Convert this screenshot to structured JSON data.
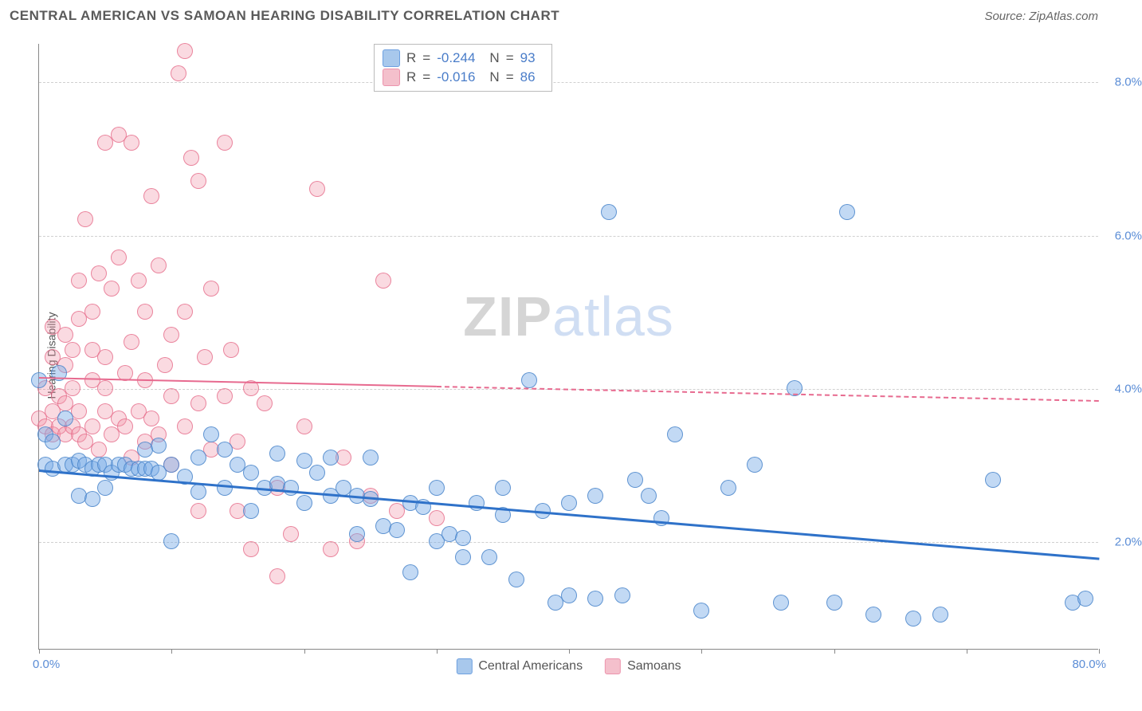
{
  "header": {
    "title": "CENTRAL AMERICAN VS SAMOAN HEARING DISABILITY CORRELATION CHART",
    "source": "Source: ZipAtlas.com"
  },
  "watermark": {
    "part1": "ZIP",
    "part2": "atlas"
  },
  "axes": {
    "ylabel": "Hearing Disability",
    "ymin": 0.6,
    "ymax": 8.5,
    "yticks": [
      2.0,
      4.0,
      6.0,
      8.0
    ],
    "ytick_labels": [
      "2.0%",
      "4.0%",
      "6.0%",
      "8.0%"
    ],
    "xmin": 0,
    "xmax": 80,
    "xtick_labels": [
      "0.0%",
      "80.0%"
    ],
    "xtick_marks": [
      0,
      10,
      20,
      30,
      40,
      50,
      60,
      70,
      80
    ],
    "grid_color": "#d0d0d0",
    "axis_color": "#888888"
  },
  "legend_top": {
    "rows": [
      {
        "color_fill": "#a8c8ec",
        "color_border": "#6da0e0",
        "R": "-0.244",
        "N": "93"
      },
      {
        "color_fill": "#f4c0cc",
        "color_border": "#ec94ad",
        "R": "-0.016",
        "N": "86"
      }
    ],
    "labels": {
      "R": "R",
      "eq": "=",
      "N": "N"
    }
  },
  "legend_bottom": {
    "items": [
      {
        "label": "Central Americans",
        "color_fill": "#a8c8ec",
        "color_border": "#6da0e0"
      },
      {
        "label": "Samoans",
        "color_fill": "#f4c0cc",
        "color_border": "#ec94ad"
      }
    ]
  },
  "series": {
    "blue": {
      "name": "Central Americans",
      "color": "#2f72c9",
      "marker_fill": "rgba(120,170,230,0.45)",
      "marker_border": "rgba(70,130,200,0.8)",
      "marker_r": 10,
      "trend": {
        "x1": 0,
        "y1": 2.95,
        "x2": 80,
        "y2": 1.8,
        "color": "#2f72c9",
        "width": 2.5,
        "solid_until_x": 80
      },
      "points": [
        [
          0,
          4.1
        ],
        [
          0.5,
          3.4
        ],
        [
          0.5,
          3.0
        ],
        [
          1,
          2.95
        ],
        [
          1,
          3.3
        ],
        [
          1.5,
          4.2
        ],
        [
          2,
          3.0
        ],
        [
          2,
          3.6
        ],
        [
          2.5,
          3.0
        ],
        [
          3,
          3.05
        ],
        [
          3,
          2.6
        ],
        [
          3.5,
          3.0
        ],
        [
          4,
          2.95
        ],
        [
          4,
          2.55
        ],
        [
          4.5,
          3.0
        ],
        [
          5,
          3.0
        ],
        [
          5,
          2.7
        ],
        [
          5.5,
          2.9
        ],
        [
          6,
          3.0
        ],
        [
          6.5,
          3.0
        ],
        [
          7,
          2.95
        ],
        [
          7.5,
          2.95
        ],
        [
          8,
          2.95
        ],
        [
          8,
          3.2
        ],
        [
          8.5,
          2.95
        ],
        [
          9,
          2.9
        ],
        [
          9,
          3.25
        ],
        [
          10,
          3.0
        ],
        [
          10,
          2.0
        ],
        [
          11,
          2.85
        ],
        [
          12,
          3.1
        ],
        [
          12,
          2.65
        ],
        [
          13,
          3.4
        ],
        [
          14,
          3.2
        ],
        [
          14,
          2.7
        ],
        [
          15,
          3.0
        ],
        [
          16,
          2.9
        ],
        [
          16,
          2.4
        ],
        [
          17,
          2.7
        ],
        [
          18,
          2.75
        ],
        [
          18,
          3.15
        ],
        [
          19,
          2.7
        ],
        [
          20,
          3.05
        ],
        [
          20,
          2.5
        ],
        [
          21,
          2.9
        ],
        [
          22,
          3.1
        ],
        [
          22,
          2.6
        ],
        [
          23,
          2.7
        ],
        [
          24,
          2.1
        ],
        [
          24,
          2.6
        ],
        [
          25,
          2.55
        ],
        [
          25,
          3.1
        ],
        [
          26,
          2.2
        ],
        [
          27,
          2.15
        ],
        [
          28,
          1.6
        ],
        [
          28,
          2.5
        ],
        [
          29,
          2.45
        ],
        [
          30,
          2.0
        ],
        [
          30,
          2.7
        ],
        [
          31,
          2.1
        ],
        [
          32,
          2.05
        ],
        [
          32,
          1.8
        ],
        [
          33,
          2.5
        ],
        [
          34,
          1.8
        ],
        [
          35,
          2.35
        ],
        [
          35,
          2.7
        ],
        [
          36,
          1.5
        ],
        [
          37,
          4.1
        ],
        [
          38,
          2.4
        ],
        [
          39,
          1.2
        ],
        [
          40,
          1.3
        ],
        [
          40,
          2.5
        ],
        [
          42,
          1.25
        ],
        [
          42,
          2.6
        ],
        [
          43,
          6.3
        ],
        [
          44,
          1.3
        ],
        [
          45,
          2.8
        ],
        [
          46,
          2.6
        ],
        [
          47,
          2.3
        ],
        [
          48,
          3.4
        ],
        [
          50,
          1.1
        ],
        [
          52,
          2.7
        ],
        [
          54,
          3.0
        ],
        [
          56,
          1.2
        ],
        [
          57,
          4.0
        ],
        [
          60,
          1.2
        ],
        [
          61,
          6.3
        ],
        [
          63,
          1.05
        ],
        [
          66,
          1.0
        ],
        [
          68,
          1.05
        ],
        [
          72,
          2.8
        ],
        [
          78,
          1.2
        ],
        [
          79,
          1.25
        ]
      ]
    },
    "pink": {
      "name": "Samoans",
      "color": "#e76a8f",
      "marker_fill": "rgba(240,150,170,0.35)",
      "marker_border": "rgba(230,110,140,0.8)",
      "marker_r": 10,
      "trend": {
        "x1": 0,
        "y1": 4.15,
        "x2": 80,
        "y2": 3.85,
        "color": "#e76a8f",
        "width": 2,
        "solid_until_x": 30
      },
      "points": [
        [
          0,
          3.6
        ],
        [
          0.5,
          3.5
        ],
        [
          0.5,
          4.0
        ],
        [
          1,
          3.4
        ],
        [
          1,
          3.7
        ],
        [
          1,
          4.4
        ],
        [
          1,
          4.8
        ],
        [
          1.5,
          3.5
        ],
        [
          1.5,
          3.9
        ],
        [
          2,
          3.4
        ],
        [
          2,
          3.8
        ],
        [
          2,
          4.3
        ],
        [
          2,
          4.7
        ],
        [
          2.5,
          3.5
        ],
        [
          2.5,
          4.0
        ],
        [
          2.5,
          4.5
        ],
        [
          3,
          3.4
        ],
        [
          3,
          3.7
        ],
        [
          3,
          4.9
        ],
        [
          3,
          5.4
        ],
        [
          3.5,
          3.3
        ],
        [
          3.5,
          6.2
        ],
        [
          4,
          3.5
        ],
        [
          4,
          4.1
        ],
        [
          4,
          4.5
        ],
        [
          4,
          5.0
        ],
        [
          4.5,
          5.5
        ],
        [
          4.5,
          3.2
        ],
        [
          5,
          3.7
        ],
        [
          5,
          4.0
        ],
        [
          5,
          4.4
        ],
        [
          5,
          7.2
        ],
        [
          5.5,
          3.4
        ],
        [
          5.5,
          5.3
        ],
        [
          6,
          3.6
        ],
        [
          6,
          5.7
        ],
        [
          6,
          7.3
        ],
        [
          6.5,
          3.5
        ],
        [
          6.5,
          4.2
        ],
        [
          7,
          7.2
        ],
        [
          7,
          4.6
        ],
        [
          7,
          3.1
        ],
        [
          7.5,
          5.4
        ],
        [
          7.5,
          3.7
        ],
        [
          8,
          4.1
        ],
        [
          8,
          3.3
        ],
        [
          8,
          5.0
        ],
        [
          8.5,
          6.5
        ],
        [
          8.5,
          3.6
        ],
        [
          9,
          3.4
        ],
        [
          9,
          5.6
        ],
        [
          9.5,
          4.3
        ],
        [
          10,
          3.0
        ],
        [
          10,
          3.9
        ],
        [
          10,
          4.7
        ],
        [
          10.5,
          8.1
        ],
        [
          11,
          3.5
        ],
        [
          11,
          5.0
        ],
        [
          11,
          8.4
        ],
        [
          11.5,
          7.0
        ],
        [
          12,
          2.4
        ],
        [
          12,
          3.8
        ],
        [
          12,
          6.7
        ],
        [
          12.5,
          4.4
        ],
        [
          13,
          3.2
        ],
        [
          13,
          5.3
        ],
        [
          14,
          7.2
        ],
        [
          14,
          3.9
        ],
        [
          14.5,
          4.5
        ],
        [
          15,
          3.3
        ],
        [
          15,
          2.4
        ],
        [
          16,
          4.0
        ],
        [
          16,
          1.9
        ],
        [
          17,
          3.8
        ],
        [
          18,
          2.7
        ],
        [
          18,
          1.55
        ],
        [
          19,
          2.1
        ],
        [
          20,
          3.5
        ],
        [
          21,
          6.6
        ],
        [
          22,
          1.9
        ],
        [
          23,
          3.1
        ],
        [
          24,
          2.0
        ],
        [
          25,
          2.6
        ],
        [
          26,
          5.4
        ],
        [
          27,
          2.4
        ],
        [
          30,
          2.3
        ]
      ]
    }
  }
}
